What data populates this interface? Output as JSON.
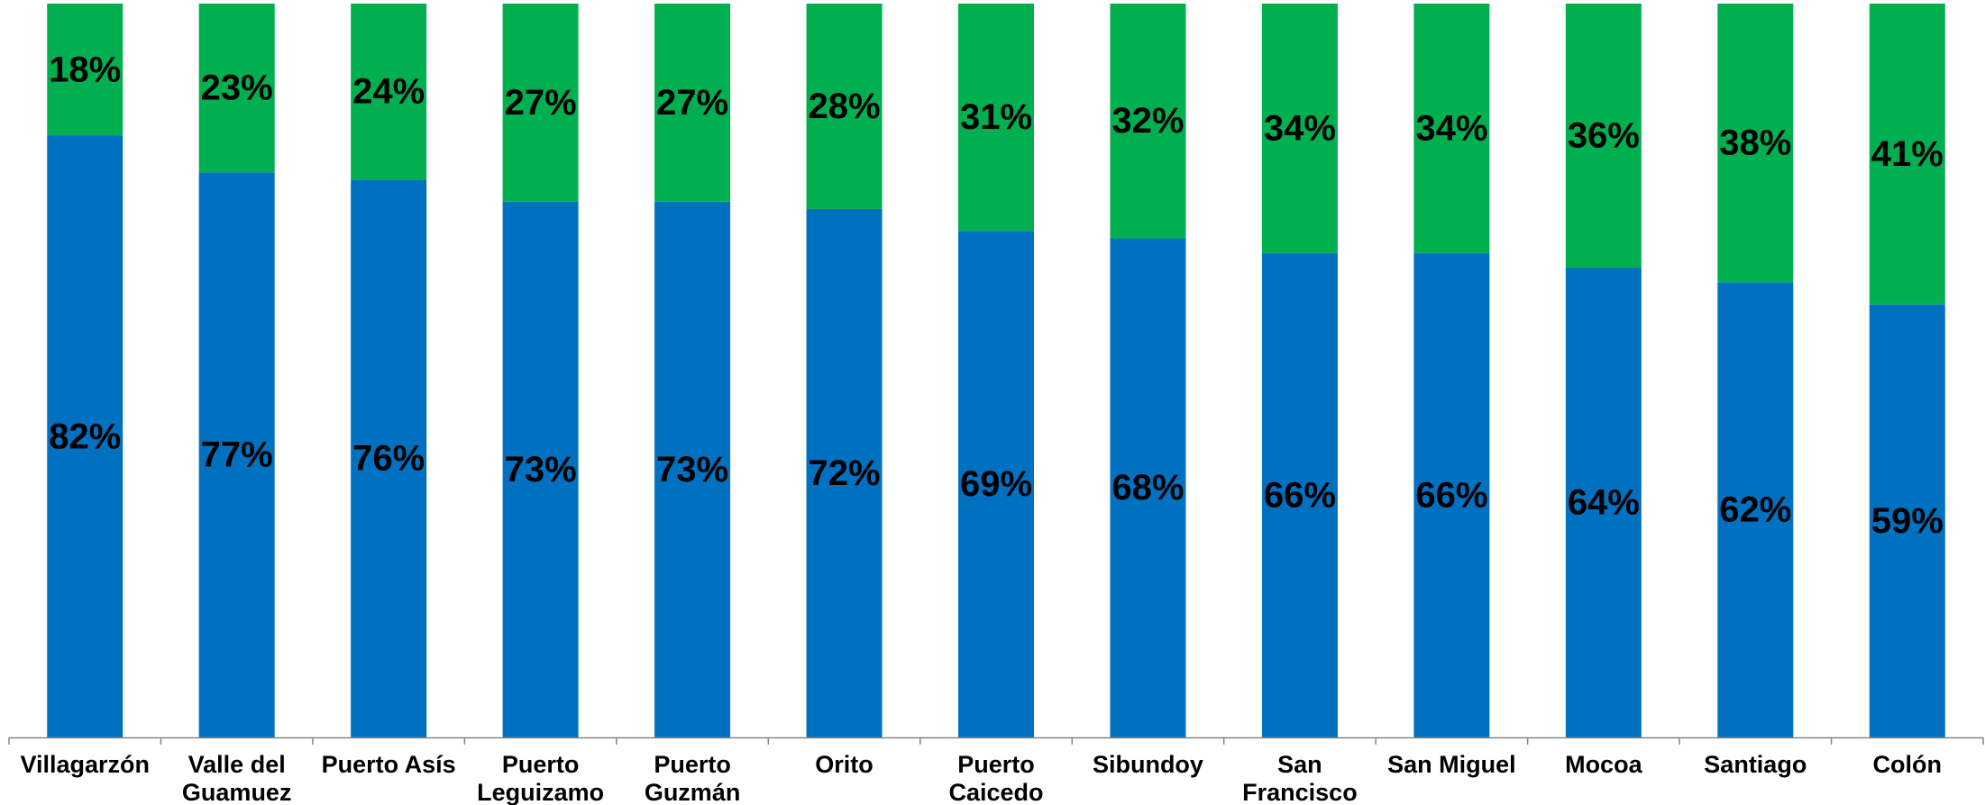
{
  "chart_data": {
    "type": "bar",
    "stacked": true,
    "percent_stacked": true,
    "categories": [
      "Villagarzón",
      "Valle del Guamuez",
      "Puerto Asís",
      "Puerto Leguizamo",
      "Puerto Guzmán",
      "Orito",
      "Puerto Caicedo",
      "Sibundoy",
      "San Francisco",
      "San Miguel",
      "Mocoa",
      "Santiago",
      "Colón"
    ],
    "category_lines": [
      [
        "Villagarzón"
      ],
      [
        "Valle del",
        "Guamuez"
      ],
      [
        "Puerto Asís"
      ],
      [
        "Puerto",
        "Leguizamo"
      ],
      [
        "Puerto",
        "Guzmán"
      ],
      [
        "Orito"
      ],
      [
        "Puerto",
        "Caicedo"
      ],
      [
        "Sibundoy"
      ],
      [
        "San",
        "Francisco"
      ],
      [
        "San Miguel"
      ],
      [
        "Mocoa"
      ],
      [
        "Santiago"
      ],
      [
        "Colón"
      ]
    ],
    "series": [
      {
        "color": "#0070C0",
        "values": [
          82,
          77,
          76,
          73,
          73,
          72,
          69,
          68,
          66,
          66,
          64,
          62,
          59
        ],
        "labels": [
          "82%",
          "77%",
          "76%",
          "73%",
          "73%",
          "72%",
          "69%",
          "68%",
          "66%",
          "66%",
          "64%",
          "62%",
          "59%"
        ]
      },
      {
        "color": "#00B050",
        "values": [
          18,
          23,
          24,
          27,
          27,
          28,
          31,
          32,
          34,
          34,
          36,
          38,
          41
        ],
        "labels": [
          "18%",
          "23%",
          "24%",
          "27%",
          "27%",
          "28%",
          "31%",
          "32%",
          "34%",
          "34%",
          "36%",
          "38%",
          "41%"
        ]
      }
    ],
    "ylim": [
      0,
      100
    ],
    "grid": false,
    "legend": "none",
    "title": "",
    "xlabel": "",
    "ylabel": ""
  }
}
